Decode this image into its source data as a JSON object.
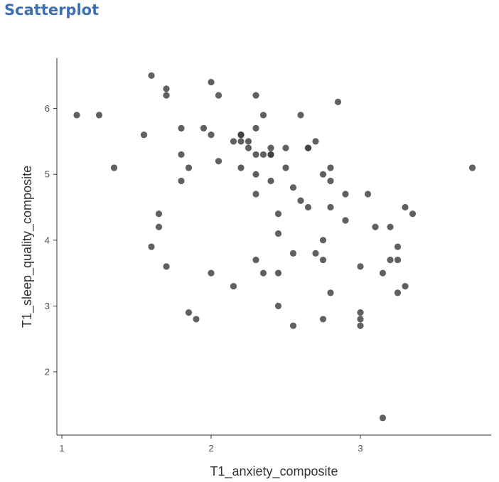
{
  "heading": "Scatterplot",
  "chart_data": {
    "type": "scatter",
    "title": "",
    "xlabel": "T1_anxiety_composite",
    "ylabel": "T1_sleep_quality_composite",
    "xlim": [
      1,
      3.9
    ],
    "ylim": [
      1.05,
      6.85
    ],
    "x_ticks": [
      1,
      2,
      3
    ],
    "y_ticks": [
      2,
      3,
      4,
      5,
      6
    ],
    "grid": false,
    "point_color": "#3d3d3d",
    "points": [
      [
        1.1,
        5.9
      ],
      [
        1.25,
        5.9
      ],
      [
        1.35,
        5.1
      ],
      [
        1.55,
        5.6
      ],
      [
        1.6,
        6.5
      ],
      [
        1.6,
        3.9
      ],
      [
        1.65,
        4.4
      ],
      [
        1.65,
        4.2
      ],
      [
        1.7,
        6.3
      ],
      [
        1.7,
        6.2
      ],
      [
        1.7,
        3.6
      ],
      [
        1.8,
        5.7
      ],
      [
        1.8,
        5.3
      ],
      [
        1.8,
        4.9
      ],
      [
        1.85,
        5.1
      ],
      [
        1.85,
        2.9
      ],
      [
        1.9,
        2.8
      ],
      [
        1.95,
        5.7
      ],
      [
        2.0,
        6.4
      ],
      [
        2.0,
        5.6
      ],
      [
        2.0,
        3.5
      ],
      [
        2.05,
        6.2
      ],
      [
        2.05,
        5.2
      ],
      [
        2.15,
        5.5
      ],
      [
        2.15,
        3.3
      ],
      [
        2.2,
        5.6
      ],
      [
        2.2,
        5.6
      ],
      [
        2.2,
        5.5
      ],
      [
        2.2,
        5.1
      ],
      [
        2.25,
        5.5
      ],
      [
        2.25,
        5.4
      ],
      [
        2.3,
        6.2
      ],
      [
        2.3,
        5.7
      ],
      [
        2.3,
        5.3
      ],
      [
        2.3,
        5.0
      ],
      [
        2.3,
        4.7
      ],
      [
        2.3,
        3.7
      ],
      [
        2.35,
        5.9
      ],
      [
        2.35,
        5.3
      ],
      [
        2.35,
        3.5
      ],
      [
        2.4,
        5.4
      ],
      [
        2.4,
        5.3
      ],
      [
        2.4,
        5.3
      ],
      [
        2.4,
        4.9
      ],
      [
        2.45,
        4.4
      ],
      [
        2.45,
        4.1
      ],
      [
        2.45,
        3.5
      ],
      [
        2.45,
        3.0
      ],
      [
        2.5,
        5.4
      ],
      [
        2.5,
        5.1
      ],
      [
        2.55,
        4.8
      ],
      [
        2.55,
        3.8
      ],
      [
        2.55,
        2.7
      ],
      [
        2.6,
        5.9
      ],
      [
        2.6,
        4.6
      ],
      [
        2.65,
        5.4
      ],
      [
        2.65,
        5.4
      ],
      [
        2.65,
        4.5
      ],
      [
        2.7,
        5.5
      ],
      [
        2.7,
        3.8
      ],
      [
        2.75,
        5.0
      ],
      [
        2.75,
        4.0
      ],
      [
        2.75,
        3.7
      ],
      [
        2.75,
        2.8
      ],
      [
        2.8,
        5.1
      ],
      [
        2.8,
        4.9
      ],
      [
        2.8,
        4.5
      ],
      [
        2.8,
        3.2
      ],
      [
        2.85,
        6.1
      ],
      [
        2.9,
        4.7
      ],
      [
        2.9,
        4.3
      ],
      [
        3.0,
        3.6
      ],
      [
        3.0,
        2.9
      ],
      [
        3.0,
        2.8
      ],
      [
        3.0,
        2.7
      ],
      [
        3.05,
        4.7
      ],
      [
        3.1,
        4.2
      ],
      [
        3.15,
        3.5
      ],
      [
        3.15,
        1.3
      ],
      [
        3.2,
        4.2
      ],
      [
        3.2,
        3.7
      ],
      [
        3.25,
        3.9
      ],
      [
        3.25,
        3.7
      ],
      [
        3.25,
        3.2
      ],
      [
        3.3,
        4.5
      ],
      [
        3.3,
        3.3
      ],
      [
        3.35,
        4.4
      ],
      [
        3.75,
        5.1
      ]
    ]
  }
}
